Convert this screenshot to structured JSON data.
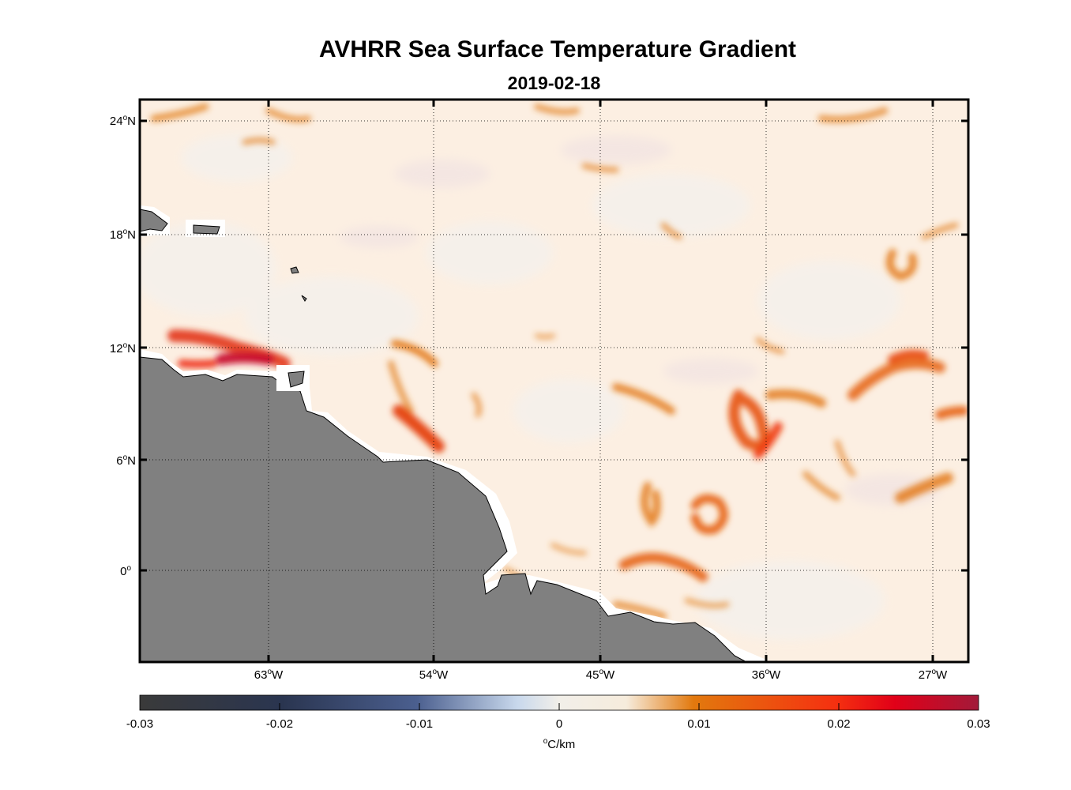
{
  "title": "AVHRR Sea Surface Temperature Gradient",
  "subtitle": "2019-02-18",
  "map": {
    "region": "Western tropical Atlantic, northeast South America coast",
    "lat_ticks": [
      {
        "value": 24,
        "label": "24",
        "hemi": "N"
      },
      {
        "value": 18,
        "label": "18",
        "hemi": "N"
      },
      {
        "value": 12,
        "label": "12",
        "hemi": "N"
      },
      {
        "value": 6,
        "label": "6",
        "hemi": "N"
      },
      {
        "value": 0,
        "label": "0",
        "hemi": ""
      }
    ],
    "lon_ticks": [
      {
        "value": -63,
        "label": "63",
        "hemi": "W"
      },
      {
        "value": -54,
        "label": "54",
        "hemi": "W"
      },
      {
        "value": -45,
        "label": "45",
        "hemi": "W"
      },
      {
        "value": -36,
        "label": "36",
        "hemi": "W"
      },
      {
        "value": -27,
        "label": "27",
        "hemi": "W"
      }
    ],
    "land_color": "#808080",
    "coast_buffer_color": "#ffffff",
    "grid": "dotted",
    "frame_color": "#000000"
  },
  "colorbar": {
    "ticks": [
      "-0.03",
      "-0.02",
      "-0.01",
      "0",
      "0.01",
      "0.02",
      "0.03"
    ],
    "units_degree": "o",
    "units_text": "C/km",
    "colors": [
      "#3a3a3a",
      "#2a3550",
      "#4b5f8f",
      "#c8d8ec",
      "#f6ecdc",
      "#e2790e",
      "#f53010",
      "#e10018",
      "#a21a3a"
    ]
  }
}
